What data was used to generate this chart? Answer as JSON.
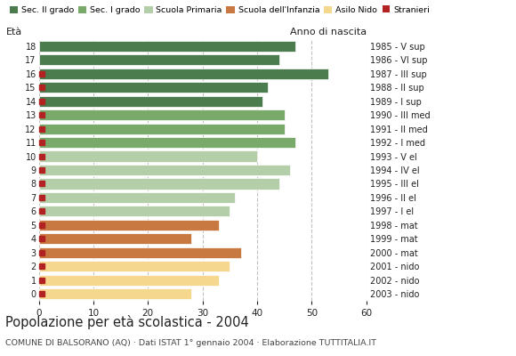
{
  "ages": [
    0,
    1,
    2,
    3,
    4,
    5,
    6,
    7,
    8,
    9,
    10,
    11,
    12,
    13,
    14,
    15,
    16,
    17,
    18
  ],
  "years": [
    "2003 - nido",
    "2002 - nido",
    "2001 - nido",
    "2000 - mat",
    "1999 - mat",
    "1998 - mat",
    "1997 - I el",
    "1996 - II el",
    "1995 - III el",
    "1994 - IV el",
    "1993 - V el",
    "1992 - I med",
    "1991 - II med",
    "1990 - III med",
    "1989 - I sup",
    "1988 - II sup",
    "1987 - III sup",
    "1986 - VI sup",
    "1985 - V sup"
  ],
  "values": [
    28,
    33,
    35,
    37,
    28,
    33,
    35,
    36,
    44,
    46,
    40,
    47,
    45,
    45,
    41,
    42,
    53,
    44,
    47
  ],
  "stranieri": [
    1,
    1,
    1,
    1,
    1,
    1,
    1,
    1,
    1,
    1,
    1,
    1,
    1,
    1,
    1,
    1,
    1,
    0,
    0
  ],
  "bar_colors": [
    "#f5d78e",
    "#f5d78e",
    "#f5d78e",
    "#c87941",
    "#c87941",
    "#c87941",
    "#b5ceaa",
    "#b5ceaa",
    "#b5ceaa",
    "#b5ceaa",
    "#b5ceaa",
    "#7aaa6a",
    "#7aaa6a",
    "#7aaa6a",
    "#4a7c4e",
    "#4a7c4e",
    "#4a7c4e",
    "#4a7c4e",
    "#4a7c4e"
  ],
  "legend_labels": [
    "Sec. II grado",
    "Sec. I grado",
    "Scuola Primaria",
    "Scuola dell'Infanzia",
    "Asilo Nido",
    "Stranieri"
  ],
  "legend_colors": [
    "#4a7c4e",
    "#7aaa6a",
    "#b5ceaa",
    "#c87941",
    "#f5d78e",
    "#b22222"
  ],
  "stranieri_color": "#b22222",
  "title": "Popolazione per età scolastica - 2004",
  "subtitle": "COMUNE DI BALSORANO (AQ) · Dati ISTAT 1° gennaio 2004 · Elaborazione TUTTITALIA.IT",
  "eta_label": "Età",
  "anno_label": "Anno di nascita",
  "xlim": [
    0,
    60
  ],
  "xticks": [
    0,
    10,
    20,
    30,
    40,
    50,
    60
  ],
  "background_color": "#ffffff",
  "bar_height": 0.78,
  "grid_color": "#bbbbbb"
}
